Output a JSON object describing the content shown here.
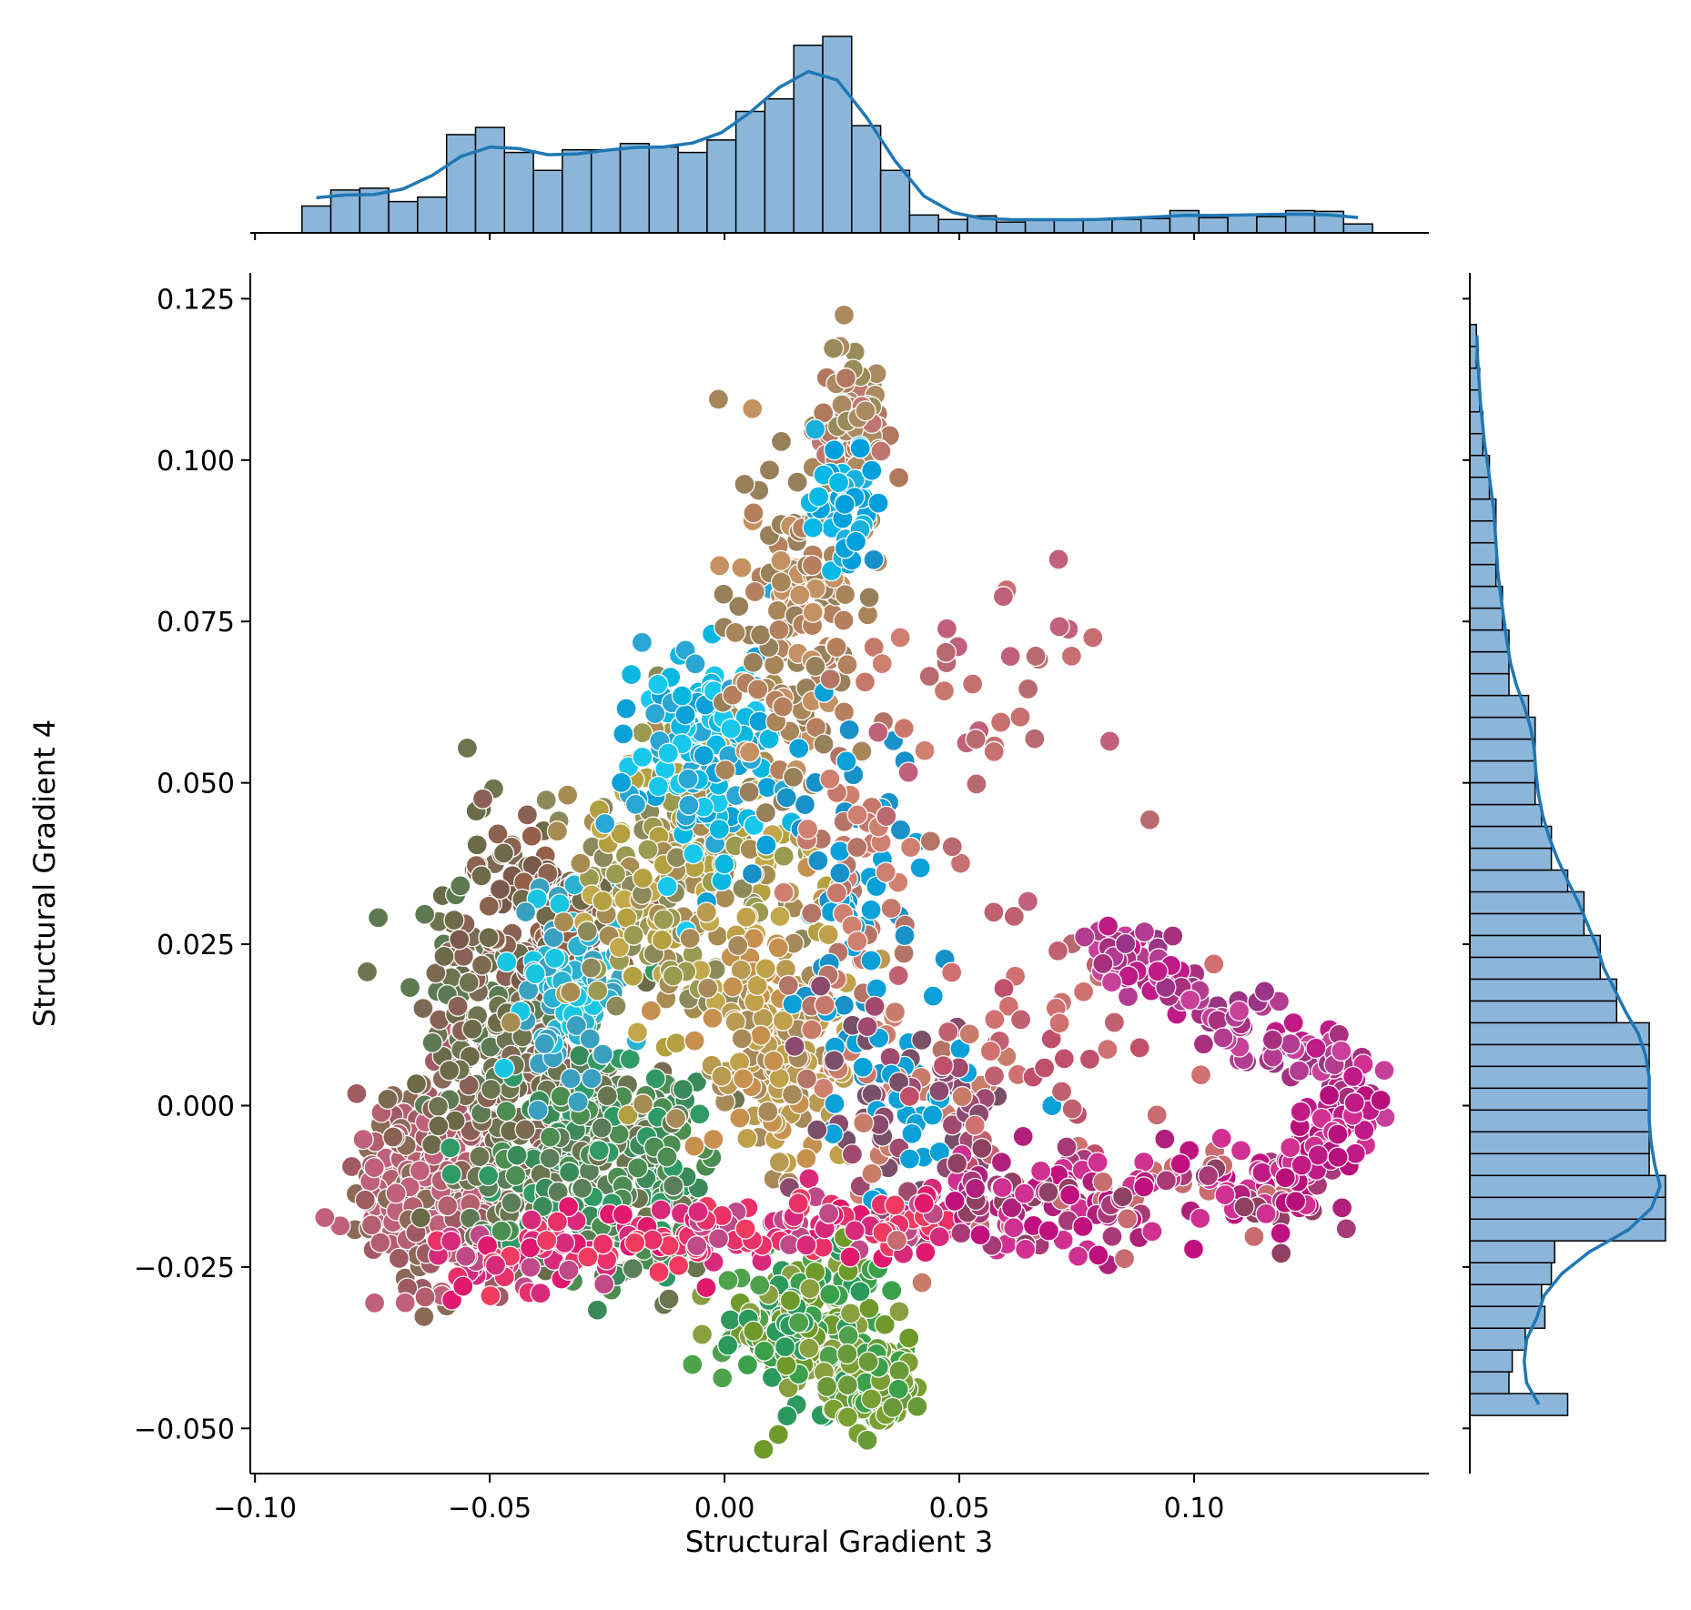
{
  "chart_data": {
    "type": "scatter",
    "variant": "jointplot",
    "xlabel": "Structural Gradient 3",
    "ylabel": "Structural Gradient 4",
    "xlim": [
      -0.101,
      0.15
    ],
    "ylim": [
      -0.057,
      0.129
    ],
    "x_ticks": [
      -0.1,
      -0.05,
      0.0,
      0.05,
      0.1
    ],
    "x_tick_labels": [
      "−0.10",
      "−0.05",
      "0.00",
      "0.05",
      "0.10"
    ],
    "y_ticks": [
      -0.05,
      -0.025,
      0.0,
      0.025,
      0.05,
      0.075,
      0.1,
      0.125
    ],
    "y_tick_labels": [
      "−0.050",
      "−0.025",
      "0.000",
      "0.025",
      "0.050",
      "0.075",
      "0.100",
      "0.125"
    ],
    "marker": {
      "edge_color": "#ffffff",
      "colored_by_point": true
    },
    "scatter_clusters": [
      {
        "center": [
          -0.062,
          -0.012
        ],
        "spread": [
          0.008,
          0.008
        ],
        "n": 260,
        "colors": [
          "#b45f6e",
          "#c0607a",
          "#a05a62",
          "#8b6a58"
        ]
      },
      {
        "center": [
          -0.045,
          0.01
        ],
        "spread": [
          0.01,
          0.013
        ],
        "n": 320,
        "colors": [
          "#6f7450",
          "#7d6a52",
          "#5e7a52",
          "#8a6155",
          "#6b6b4a"
        ]
      },
      {
        "center": [
          -0.04,
          0.03
        ],
        "spread": [
          0.008,
          0.006
        ],
        "n": 110,
        "colors": [
          "#7a5a4a",
          "#8c6250",
          "#6f6a4a",
          "#956048"
        ]
      },
      {
        "center": [
          -0.025,
          -0.008
        ],
        "spread": [
          0.012,
          0.009
        ],
        "n": 340,
        "colors": [
          "#3a8a5a",
          "#4c8d52",
          "#5a7e58",
          "#6b7550",
          "#2f9a66"
        ]
      },
      {
        "center": [
          -0.033,
          0.018
        ],
        "spread": [
          0.006,
          0.007
        ],
        "n": 90,
        "colors": [
          "#18c6e2",
          "#2ab2d0",
          "#3aa0c0"
        ]
      },
      {
        "center": [
          -0.01,
          0.035
        ],
        "spread": [
          0.012,
          0.012
        ],
        "n": 260,
        "colors": [
          "#b3a040",
          "#a68c52",
          "#9a9a50",
          "#c2a84a",
          "#8c8a5a"
        ]
      },
      {
        "center": [
          -0.005,
          0.055
        ],
        "spread": [
          0.008,
          0.01
        ],
        "n": 130,
        "colors": [
          "#08b8e0",
          "#18c8ec",
          "#2aa6d4",
          "#0aa0d8"
        ]
      },
      {
        "center": [
          0.015,
          0.075
        ],
        "spread": [
          0.008,
          0.012
        ],
        "n": 150,
        "colors": [
          "#a8865a",
          "#c49262",
          "#98805a",
          "#b4805e"
        ]
      },
      {
        "center": [
          0.028,
          0.105
        ],
        "spread": [
          0.004,
          0.008
        ],
        "n": 80,
        "colors": [
          "#998c5a",
          "#ab8a62",
          "#b0785e",
          "#c07670"
        ]
      },
      {
        "center": [
          0.025,
          0.092
        ],
        "spread": [
          0.004,
          0.006
        ],
        "n": 45,
        "colors": [
          "#08b8e6",
          "#1ab0dc",
          "#00a0dc"
        ]
      },
      {
        "center": [
          0.01,
          0.01
        ],
        "spread": [
          0.008,
          0.01
        ],
        "n": 170,
        "colors": [
          "#c0a048",
          "#b89a50",
          "#a88a5a",
          "#c6904e"
        ]
      },
      {
        "center": [
          0.028,
          0.03
        ],
        "spread": [
          0.009,
          0.018
        ],
        "n": 130,
        "colors": [
          "#c8786a",
          "#b47466",
          "#d08070",
          "#0aa0d8",
          "#1890c8"
        ]
      },
      {
        "center": [
          0.018,
          -0.035
        ],
        "spread": [
          0.008,
          0.006
        ],
        "n": 210,
        "colors": [
          "#6e9a2a",
          "#3aa04a",
          "#4fa24c",
          "#88a040",
          "#2c9a5c"
        ]
      },
      {
        "center": [
          0.033,
          -0.044
        ],
        "spread": [
          0.004,
          0.003
        ],
        "n": 90,
        "colors": [
          "#7aa034",
          "#6a9a38",
          "#3aa04a"
        ]
      },
      {
        "center": [
          0.04,
          0.0
        ],
        "spread": [
          0.01,
          0.008
        ],
        "n": 110,
        "colors": [
          "#8c4a6e",
          "#a04a70",
          "#c87c6a",
          "#0aa0d8",
          "#7a5068"
        ]
      },
      {
        "center": [
          0.06,
          0.06
        ],
        "spread": [
          0.012,
          0.014
        ],
        "n": 35,
        "colors": [
          "#c0607a",
          "#c87070",
          "#b86a70"
        ]
      },
      {
        "center": [
          0.065,
          0.01
        ],
        "spread": [
          0.014,
          0.01
        ],
        "n": 45,
        "colors": [
          "#c06070",
          "#d07070",
          "#c0506a"
        ]
      }
    ],
    "scatter_lines": [
      {
        "from": [
          -0.06,
          -0.024
        ],
        "to": [
          0.048,
          -0.017
        ],
        "jitter": 0.0025,
        "n": 200,
        "colors": [
          "#e0186e",
          "#f03a60",
          "#d82a7a",
          "#c04a88",
          "#ea3068"
        ]
      },
      {
        "from": [
          0.05,
          -0.015
        ],
        "to": [
          0.13,
          -0.012
        ],
        "jitter": 0.004,
        "n": 200,
        "colors": [
          "#c0107e",
          "#b0207a",
          "#904060",
          "#d03090",
          "#c86c70",
          "#a83a78"
        ]
      },
      {
        "from": [
          0.08,
          0.025
        ],
        "to": [
          0.137,
          0.002
        ],
        "jitter": 0.003,
        "n": 130,
        "colors": [
          "#b43c90",
          "#c8409a",
          "#a8307e",
          "#c01a86",
          "#9a3486"
        ]
      },
      {
        "from": [
          0.137,
          0.002
        ],
        "to": [
          0.12,
          -0.012
        ],
        "jitter": 0.003,
        "n": 60,
        "colors": [
          "#c01a86",
          "#b8107a",
          "#d03090"
        ]
      }
    ],
    "marginal_x": {
      "bin_range": [
        -0.09,
        0.138
      ],
      "counts": [
        30,
        48,
        50,
        35,
        40,
        110,
        118,
        90,
        70,
        93,
        93,
        100,
        96,
        90,
        104,
        136,
        150,
        210,
        220,
        120,
        70,
        20,
        15,
        19,
        12,
        15,
        15,
        15,
        15,
        16,
        25,
        17,
        20,
        18,
        25,
        24,
        10
      ]
    },
    "marginal_y": {
      "bin_range": [
        -0.048,
        0.121
      ],
      "counts": [
        30,
        12,
        13,
        17,
        23,
        22,
        25,
        26,
        60,
        60,
        60,
        55,
        55,
        55,
        55,
        55,
        55,
        55,
        45,
        45,
        40,
        40,
        35,
        35,
        30,
        25,
        25,
        22,
        20,
        20,
        20,
        20,
        18,
        12,
        12,
        12,
        10,
        10,
        8,
        8,
        8,
        8,
        6,
        6,
        4,
        4,
        3,
        3,
        2,
        2
      ]
    },
    "histogram_style": {
      "fill": "#8cb6d9",
      "edge": "#000000",
      "kde_color": "#1f77b4"
    }
  }
}
